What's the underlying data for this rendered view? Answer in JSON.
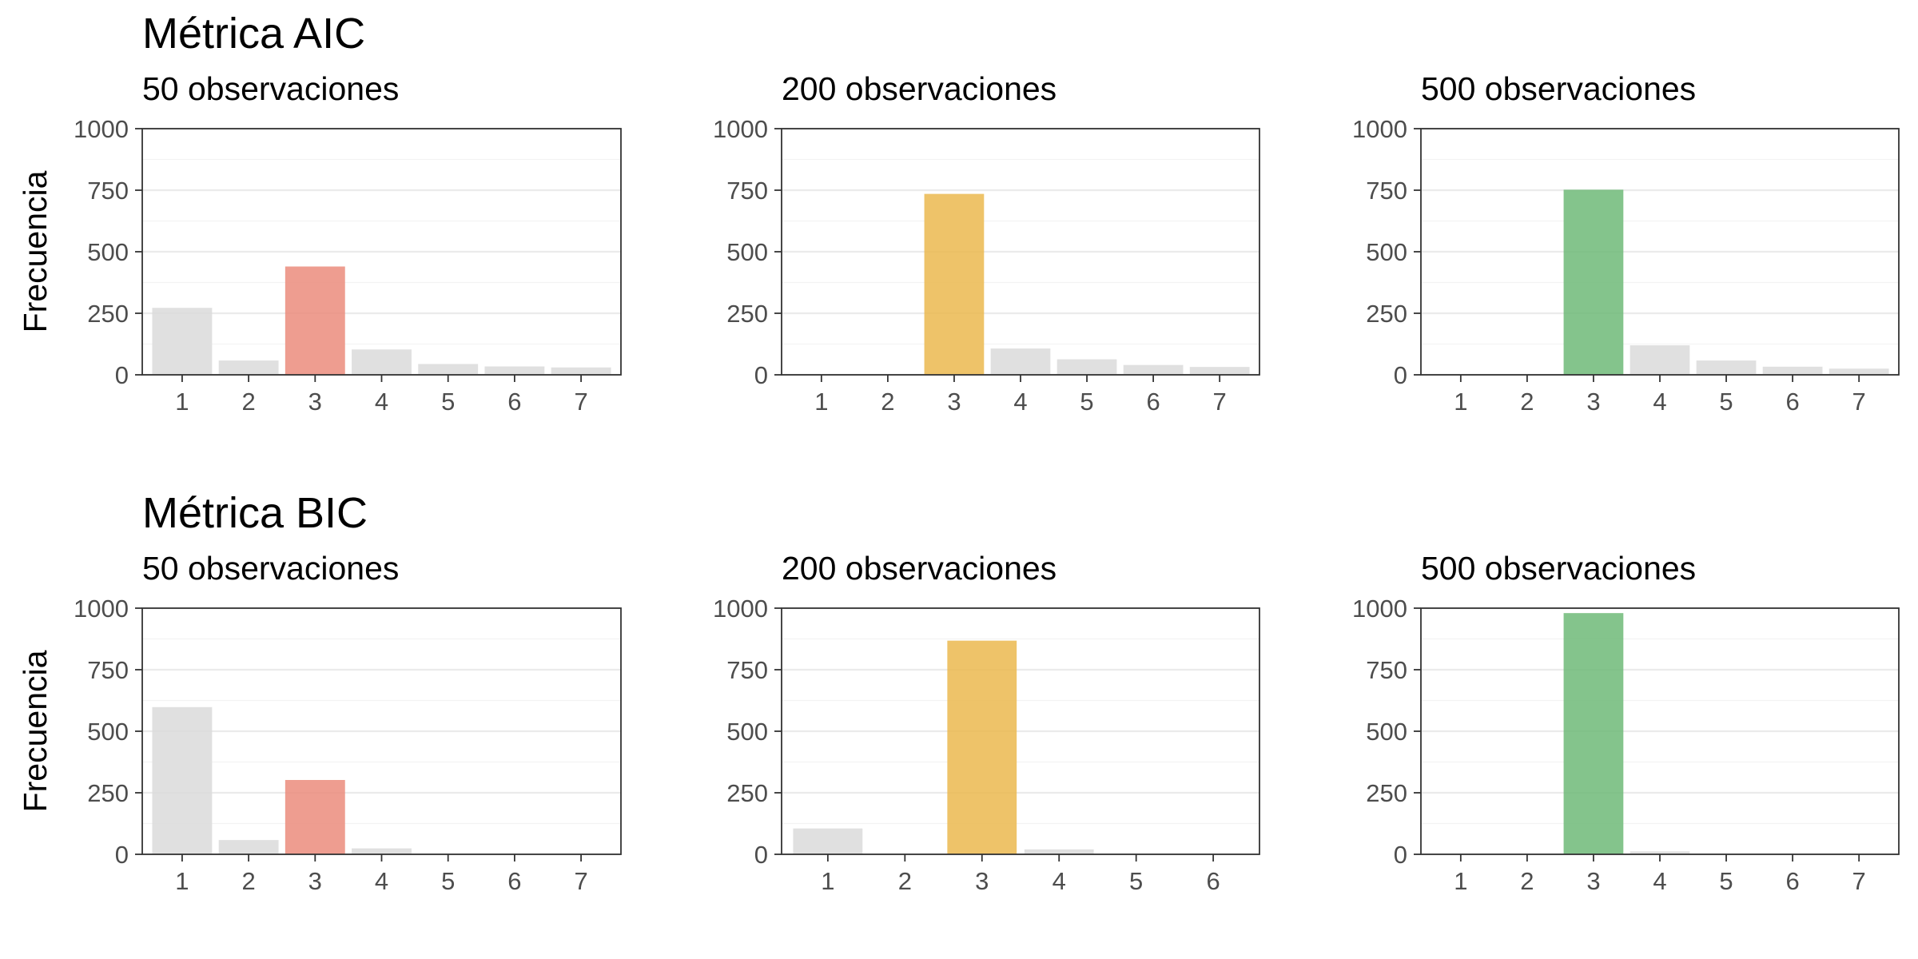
{
  "chart_data": [
    {
      "type": "bar",
      "row_title": "Métrica AIC",
      "title": "50 observaciones",
      "ylabel": "Frecuencia",
      "ylim": [
        0,
        1000
      ],
      "yticks": [
        "0",
        "250",
        "500",
        "750",
        "1000"
      ],
      "ytick_values": [
        0,
        250,
        500,
        750,
        1000
      ],
      "categories": [
        "1",
        "2",
        "3",
        "4",
        "5",
        "6",
        "7"
      ],
      "values": [
        272,
        58,
        440,
        103,
        44,
        34,
        30
      ],
      "highlight_category": "3",
      "highlight_color": "#eb8c7c",
      "base_color": "#dadada",
      "grid": true
    },
    {
      "type": "bar",
      "row_title": "",
      "title": "200 observaciones",
      "ylabel": "",
      "ylim": [
        0,
        1000
      ],
      "yticks": [
        "0",
        "250",
        "500",
        "750",
        "1000"
      ],
      "ytick_values": [
        0,
        250,
        500,
        750,
        1000
      ],
      "categories": [
        "1",
        "2",
        "3",
        "4",
        "5",
        "6",
        "7"
      ],
      "values": [
        0,
        0,
        735,
        107,
        63,
        40,
        32
      ],
      "highlight_category": "3",
      "highlight_color": "#ebb94f",
      "base_color": "#dadada",
      "grid": true
    },
    {
      "type": "bar",
      "row_title": "",
      "title": "500 observaciones",
      "ylabel": "",
      "ylim": [
        0,
        1000
      ],
      "yticks": [
        "0",
        "250",
        "500",
        "750",
        "1000"
      ],
      "ytick_values": [
        0,
        250,
        500,
        750,
        1000
      ],
      "categories": [
        "1",
        "2",
        "3",
        "4",
        "5",
        "6",
        "7"
      ],
      "values": [
        0,
        0,
        752,
        120,
        58,
        33,
        25
      ],
      "highlight_category": "3",
      "highlight_color": "#6fba78",
      "base_color": "#dadada",
      "grid": true
    },
    {
      "type": "bar",
      "row_title": "Métrica BIC",
      "title": "50 observaciones",
      "ylabel": "Frecuencia",
      "ylim": [
        0,
        1000
      ],
      "yticks": [
        "0",
        "250",
        "500",
        "750",
        "1000"
      ],
      "ytick_values": [
        0,
        250,
        500,
        750,
        1000
      ],
      "categories": [
        "1",
        "2",
        "3",
        "4",
        "5",
        "6",
        "7"
      ],
      "values": [
        598,
        58,
        302,
        24,
        0,
        0,
        0
      ],
      "highlight_category": "3",
      "highlight_color": "#eb8c7c",
      "base_color": "#dadada",
      "grid": true
    },
    {
      "type": "bar",
      "row_title": "",
      "title": "200 observaciones",
      "ylabel": "",
      "ylim": [
        0,
        1000
      ],
      "yticks": [
        "0",
        "250",
        "500",
        "750",
        "1000"
      ],
      "ytick_values": [
        0,
        250,
        500,
        750,
        1000
      ],
      "categories": [
        "1",
        "2",
        "3",
        "4",
        "5",
        "6"
      ],
      "values": [
        105,
        0,
        868,
        20,
        0,
        0
      ],
      "highlight_category": "3",
      "highlight_color": "#ebb94f",
      "base_color": "#dadada",
      "grid": true
    },
    {
      "type": "bar",
      "row_title": "",
      "title": "500 observaciones",
      "ylabel": "",
      "ylim": [
        0,
        1000
      ],
      "yticks": [
        "0",
        "250",
        "500",
        "750",
        "1000"
      ],
      "ytick_values": [
        0,
        250,
        500,
        750,
        1000
      ],
      "categories": [
        "1",
        "2",
        "3",
        "4",
        "5",
        "6",
        "7"
      ],
      "values": [
        0,
        0,
        980,
        12,
        0,
        0,
        0
      ],
      "highlight_category": "3",
      "highlight_color": "#6fba78",
      "base_color": "#dadada",
      "grid": true
    }
  ]
}
